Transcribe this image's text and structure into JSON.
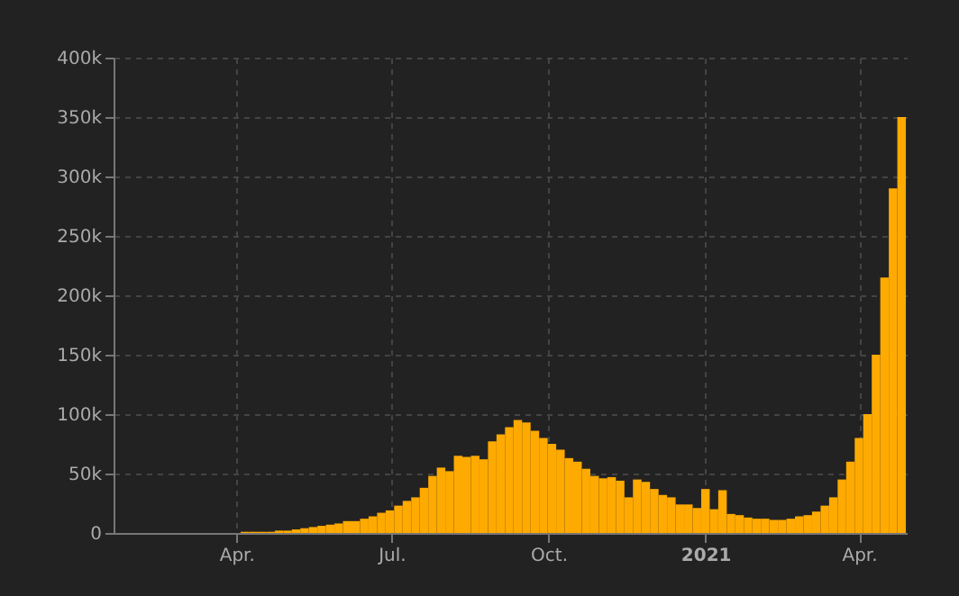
{
  "chart_data": {
    "type": "bar",
    "color": "#ffaa00",
    "x": [
      "2020-01-22",
      "2020-01-27",
      "2020-02-01",
      "2020-02-06",
      "2020-02-11",
      "2020-02-16",
      "2020-02-21",
      "2020-02-26",
      "2020-03-02",
      "2020-03-07",
      "2020-03-12",
      "2020-03-17",
      "2020-03-22",
      "2020-03-27",
      "2020-04-01",
      "2020-04-06",
      "2020-04-11",
      "2020-04-16",
      "2020-04-21",
      "2020-04-26",
      "2020-05-01",
      "2020-05-06",
      "2020-05-11",
      "2020-05-16",
      "2020-05-21",
      "2020-05-26",
      "2020-05-31",
      "2020-06-05",
      "2020-06-10",
      "2020-06-15",
      "2020-06-20",
      "2020-06-25",
      "2020-06-30",
      "2020-07-05",
      "2020-07-10",
      "2020-07-15",
      "2020-07-20",
      "2020-07-25",
      "2020-07-30",
      "2020-08-04",
      "2020-08-09",
      "2020-08-14",
      "2020-08-19",
      "2020-08-24",
      "2020-08-29",
      "2020-09-03",
      "2020-09-08",
      "2020-09-13",
      "2020-09-18",
      "2020-09-23",
      "2020-09-28",
      "2020-10-03",
      "2020-10-08",
      "2020-10-13",
      "2020-10-18",
      "2020-10-23",
      "2020-10-28",
      "2020-11-02",
      "2020-11-07",
      "2020-11-12",
      "2020-11-17",
      "2020-11-22",
      "2020-11-27",
      "2020-12-02",
      "2020-12-07",
      "2020-12-12",
      "2020-12-17",
      "2020-12-22",
      "2020-12-27",
      "2021-01-01",
      "2021-01-06",
      "2021-01-11",
      "2021-01-16",
      "2021-01-21",
      "2021-01-26",
      "2021-01-31",
      "2021-02-05",
      "2021-02-10",
      "2021-02-15",
      "2021-02-20",
      "2021-02-25",
      "2021-03-02",
      "2021-03-07",
      "2021-03-12",
      "2021-03-17",
      "2021-03-22",
      "2021-03-27",
      "2021-04-01",
      "2021-04-06",
      "2021-04-11",
      "2021-04-16",
      "2021-04-21",
      "2021-04-26"
    ],
    "values": [
      0,
      0,
      0,
      0,
      0,
      0,
      0,
      0,
      0,
      0,
      0,
      0,
      0,
      0,
      0,
      1000,
      1000,
      1000,
      1000,
      2000,
      2000,
      3000,
      4000,
      5000,
      6000,
      7000,
      8000,
      10000,
      10000,
      12000,
      14000,
      17000,
      19000,
      23000,
      27000,
      30000,
      38000,
      48000,
      55000,
      52000,
      65000,
      64000,
      65000,
      62000,
      77000,
      83000,
      89000,
      95000,
      93000,
      86000,
      80000,
      75000,
      70000,
      63000,
      60000,
      54000,
      48000,
      46000,
      47000,
      44000,
      30000,
      45000,
      43000,
      37000,
      32000,
      30000,
      24000,
      24000,
      21000,
      37000,
      20000,
      36000,
      16000,
      15000,
      13000,
      12000,
      12000,
      11000,
      11000,
      12000,
      14000,
      15000,
      18000,
      23000,
      30000,
      45000,
      60000,
      80000,
      100000,
      150000,
      215000,
      290000,
      350000
    ],
    "xlim": [
      "2020-01-20",
      "2021-04-29"
    ],
    "xticks": [
      {
        "value": "2020-04-01",
        "label": "Apr."
      },
      {
        "value": "2020-07-01",
        "label": "Jul."
      },
      {
        "value": "2020-10-01",
        "label": "Oct."
      },
      {
        "value": "2021-01-01",
        "label": "2021"
      },
      {
        "value": "2021-04-01",
        "label": "Apr."
      }
    ],
    "ylim": [
      0,
      400000
    ],
    "yticks": [
      {
        "value": 0,
        "label": "0"
      },
      {
        "value": 50000,
        "label": "50k"
      },
      {
        "value": 100000,
        "label": "100k"
      },
      {
        "value": 150000,
        "label": "150k"
      },
      {
        "value": 200000,
        "label": "200k"
      },
      {
        "value": 250000,
        "label": "250k"
      },
      {
        "value": 300000,
        "label": "300k"
      },
      {
        "value": 350000,
        "label": "350k"
      },
      {
        "value": 400000,
        "label": "400k"
      }
    ],
    "grid": true
  }
}
